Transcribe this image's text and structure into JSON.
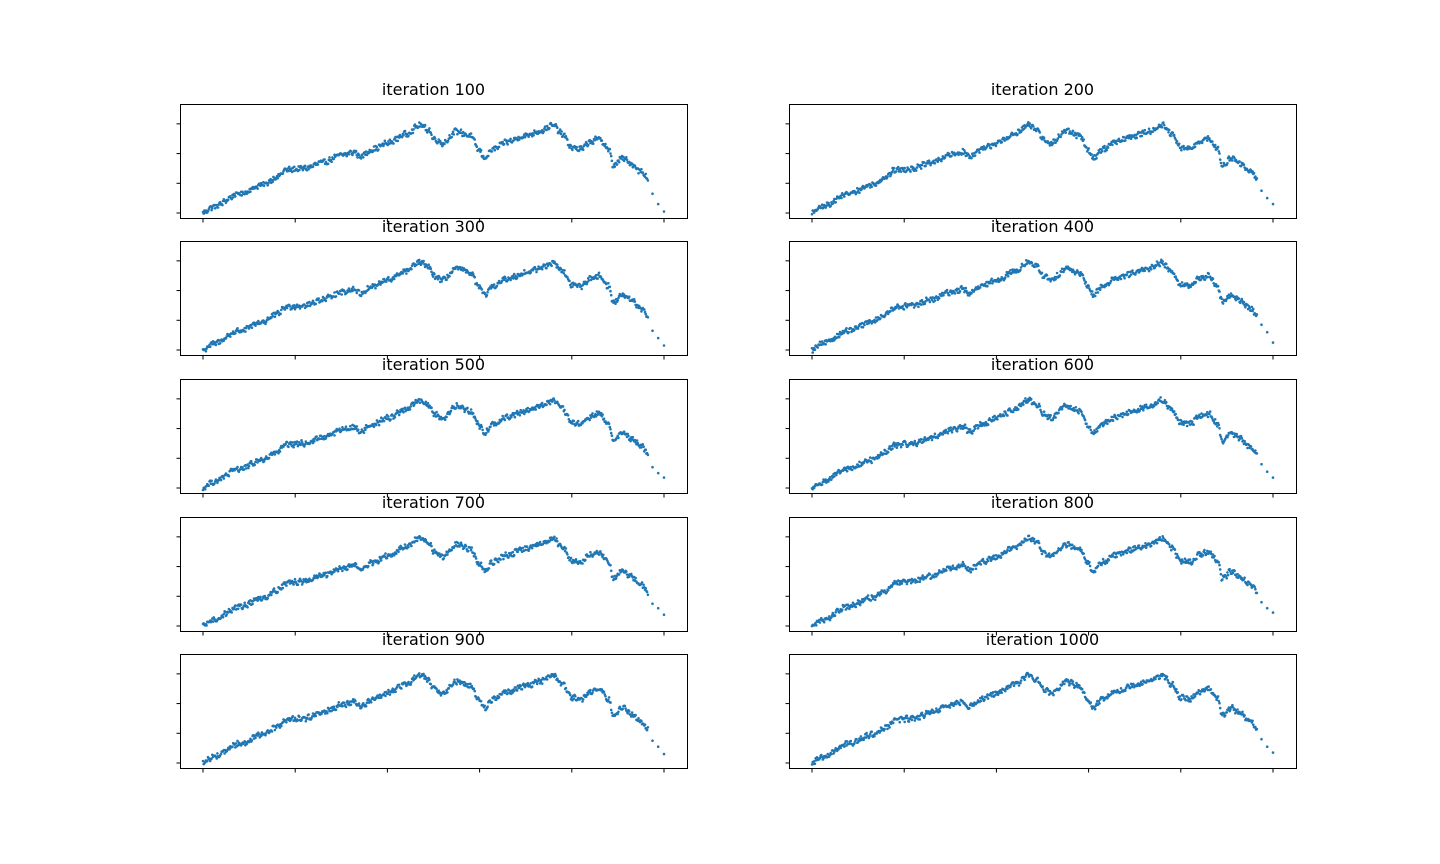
{
  "figure": {
    "point_color": "#1f77b4",
    "axes_color": "#000000",
    "background": "#ffffff"
  },
  "chart_data": [
    {
      "type": "scatter",
      "title": "iteration 100",
      "tail": [
        -1.35,
        -1.7,
        -1.95
      ],
      "grid": false,
      "tick_labels": false
    },
    {
      "type": "scatter",
      "title": "iteration 200",
      "tail": [
        -1.25,
        -1.5,
        -1.7
      ],
      "grid": false,
      "tick_labels": false
    },
    {
      "type": "scatter",
      "title": "iteration 300",
      "tail": [
        -1.35,
        -1.6,
        -1.85
      ],
      "grid": false,
      "tick_labels": false
    },
    {
      "type": "scatter",
      "title": "iteration 400",
      "tail": [
        -1.15,
        -1.4,
        -1.75
      ],
      "grid": false,
      "tick_labels": false
    },
    {
      "type": "scatter",
      "title": "iteration 500",
      "tail": [
        -1.3,
        -1.5,
        -1.65
      ],
      "grid": false,
      "tick_labels": false
    },
    {
      "type": "scatter",
      "title": "iteration 600",
      "tail": [
        -1.2,
        -1.45,
        -1.65
      ],
      "grid": false,
      "tick_labels": false
    },
    {
      "type": "scatter",
      "title": "iteration 700",
      "tail": [
        -1.25,
        -1.4,
        -1.62
      ],
      "grid": false,
      "tick_labels": false
    },
    {
      "type": "scatter",
      "title": "iteration 800",
      "tail": [
        -1.2,
        -1.4,
        -1.55
      ],
      "grid": false,
      "tick_labels": false
    },
    {
      "type": "scatter",
      "title": "iteration 900",
      "tail": [
        -1.25,
        -1.45,
        -1.7
      ],
      "grid": false,
      "tick_labels": false
    },
    {
      "type": "scatter",
      "title": "iteration 1000",
      "tail": [
        -1.2,
        -1.45,
        -1.65
      ],
      "grid": false,
      "tick_labels": false
    }
  ]
}
